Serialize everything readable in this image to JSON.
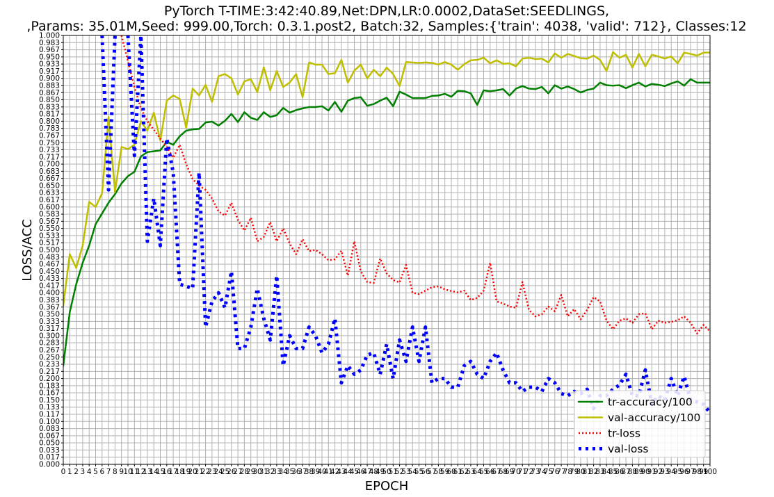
{
  "chart_data": {
    "type": "line",
    "title_line1": "PyTorch T-TIME:3:42:40.89,Net:DPN,LR:0.0002,DataSet:SEEDLINGS,",
    "title_line2": ",Params: 35.01M,Seed: 999.00,Torch: 0.3.1.post2, Batch:32, Samples:{'train': 4038, 'valid': 712}, Classes:12",
    "xlabel": "EPOCH",
    "ylabel": "LOSS/ACC",
    "xlim": [
      0,
      100
    ],
    "ylim": [
      0,
      1.0
    ],
    "ystep": 0.0166667,
    "grid": true,
    "legend_position": "lower-right",
    "series": [
      {
        "name": "tr-accuracy/100",
        "color": "#008000",
        "style": "solid",
        "values": [
          0.23,
          0.355,
          0.42,
          0.47,
          0.51,
          0.56,
          0.585,
          0.61,
          0.63,
          0.655,
          0.672,
          0.682,
          0.718,
          0.728,
          0.73,
          0.732,
          0.752,
          0.745,
          0.765,
          0.778,
          0.781,
          0.782,
          0.797,
          0.799,
          0.79,
          0.801,
          0.817,
          0.798,
          0.821,
          0.808,
          0.803,
          0.821,
          0.81,
          0.814,
          0.831,
          0.82,
          0.826,
          0.83,
          0.833,
          0.833,
          0.835,
          0.825,
          0.845,
          0.822,
          0.848,
          0.854,
          0.856,
          0.836,
          0.84,
          0.848,
          0.855,
          0.835,
          0.869,
          0.862,
          0.854,
          0.854,
          0.854,
          0.859,
          0.86,
          0.864,
          0.857,
          0.871,
          0.87,
          0.865,
          0.838,
          0.872,
          0.87,
          0.872,
          0.875,
          0.86,
          0.876,
          0.882,
          0.876,
          0.875,
          0.88,
          0.865,
          0.884,
          0.876,
          0.881,
          0.875,
          0.867,
          0.873,
          0.876,
          0.89,
          0.884,
          0.883,
          0.884,
          0.877,
          0.884,
          0.89,
          0.881,
          0.887,
          0.885,
          0.882,
          0.888,
          0.893,
          0.883,
          0.898,
          0.89,
          0.89,
          0.89
        ]
      },
      {
        "name": "val-accuracy/100",
        "color": "#bfbf00",
        "style": "solid",
        "values": [
          0.37,
          0.49,
          0.458,
          0.51,
          0.612,
          0.6,
          0.632,
          0.81,
          0.635,
          0.74,
          0.735,
          0.745,
          0.8,
          0.778,
          0.82,
          0.755,
          0.848,
          0.86,
          0.852,
          0.785,
          0.876,
          0.86,
          0.885,
          0.845,
          0.905,
          0.91,
          0.9,
          0.862,
          0.893,
          0.898,
          0.868,
          0.926,
          0.872,
          0.917,
          0.88,
          0.89,
          0.91,
          0.856,
          0.937,
          0.932,
          0.932,
          0.91,
          0.912,
          0.943,
          0.89,
          0.918,
          0.932,
          0.9,
          0.92,
          0.905,
          0.925,
          0.91,
          0.882,
          0.938,
          0.937,
          0.936,
          0.937,
          0.936,
          0.932,
          0.938,
          0.932,
          0.92,
          0.933,
          0.942,
          0.943,
          0.948,
          0.935,
          0.942,
          0.934,
          0.935,
          0.928,
          0.946,
          0.948,
          0.945,
          0.946,
          0.937,
          0.958,
          0.948,
          0.957,
          0.952,
          0.947,
          0.946,
          0.953,
          0.943,
          0.917,
          0.961,
          0.948,
          0.955,
          0.925,
          0.957,
          0.928,
          0.955,
          0.951,
          0.946,
          0.951,
          0.935,
          0.96,
          0.957,
          0.953,
          0.96,
          0.96
        ]
      },
      {
        "name": "tr-loss",
        "color": "#ff0000",
        "style": "dotted",
        "values": [
          null,
          null,
          null,
          null,
          null,
          null,
          null,
          null,
          null,
          1.0,
          0.94,
          0.88,
          0.83,
          0.8,
          0.78,
          0.76,
          0.74,
          0.715,
          0.745,
          0.7,
          0.665,
          0.65,
          0.64,
          0.62,
          0.59,
          0.58,
          0.61,
          0.57,
          0.545,
          0.575,
          0.52,
          0.53,
          0.565,
          0.52,
          0.55,
          0.515,
          0.49,
          0.525,
          0.497,
          0.5,
          0.49,
          0.476,
          0.478,
          0.498,
          0.44,
          0.52,
          0.45,
          0.425,
          0.423,
          0.48,
          0.445,
          0.43,
          0.424,
          0.465,
          0.4,
          0.397,
          0.405,
          0.413,
          0.415,
          0.408,
          0.404,
          0.401,
          0.405,
          0.383,
          0.388,
          0.405,
          0.47,
          0.38,
          0.375,
          0.368,
          0.365,
          0.425,
          0.36,
          0.345,
          0.35,
          0.368,
          0.357,
          0.395,
          0.345,
          0.362,
          0.338,
          0.36,
          0.39,
          0.38,
          0.335,
          0.315,
          0.335,
          0.34,
          0.33,
          0.35,
          0.352,
          0.315,
          0.335,
          0.33,
          0.332,
          0.336,
          0.345,
          0.33,
          0.305,
          0.325,
          0.31,
          0.31
        ]
      },
      {
        "name": "val-loss",
        "color": "#0000ff",
        "style": "dotted",
        "values": [
          null,
          null,
          null,
          null,
          null,
          null,
          1.0,
          0.64,
          1.0,
          null,
          1.0,
          0.72,
          1.0,
          0.52,
          0.62,
          0.51,
          0.76,
          0.68,
          0.42,
          0.415,
          0.41,
          0.68,
          0.32,
          0.38,
          0.4,
          0.365,
          0.45,
          0.27,
          0.27,
          0.32,
          0.41,
          0.34,
          0.29,
          0.44,
          0.23,
          0.3,
          0.27,
          0.27,
          0.32,
          0.3,
          0.26,
          0.28,
          0.34,
          0.19,
          0.23,
          0.21,
          0.22,
          0.255,
          0.26,
          0.21,
          0.28,
          0.2,
          0.29,
          0.24,
          0.32,
          0.24,
          0.32,
          0.19,
          0.2,
          0.2,
          0.18,
          0.18,
          0.23,
          0.24,
          0.21,
          0.2,
          0.24,
          0.26,
          0.22,
          0.19,
          0.19,
          0.17,
          0.18,
          0.18,
          0.17,
          0.2,
          0.19,
          0.165,
          0.16,
          0.17,
          0.165,
          0.175,
          0.13,
          0.16,
          0.16,
          0.175,
          0.185,
          0.21,
          0.16,
          0.16,
          0.22,
          0.14,
          0.16,
          0.15,
          0.2,
          0.16,
          0.205,
          0.15,
          0.145,
          0.14,
          0.12
        ]
      }
    ]
  }
}
